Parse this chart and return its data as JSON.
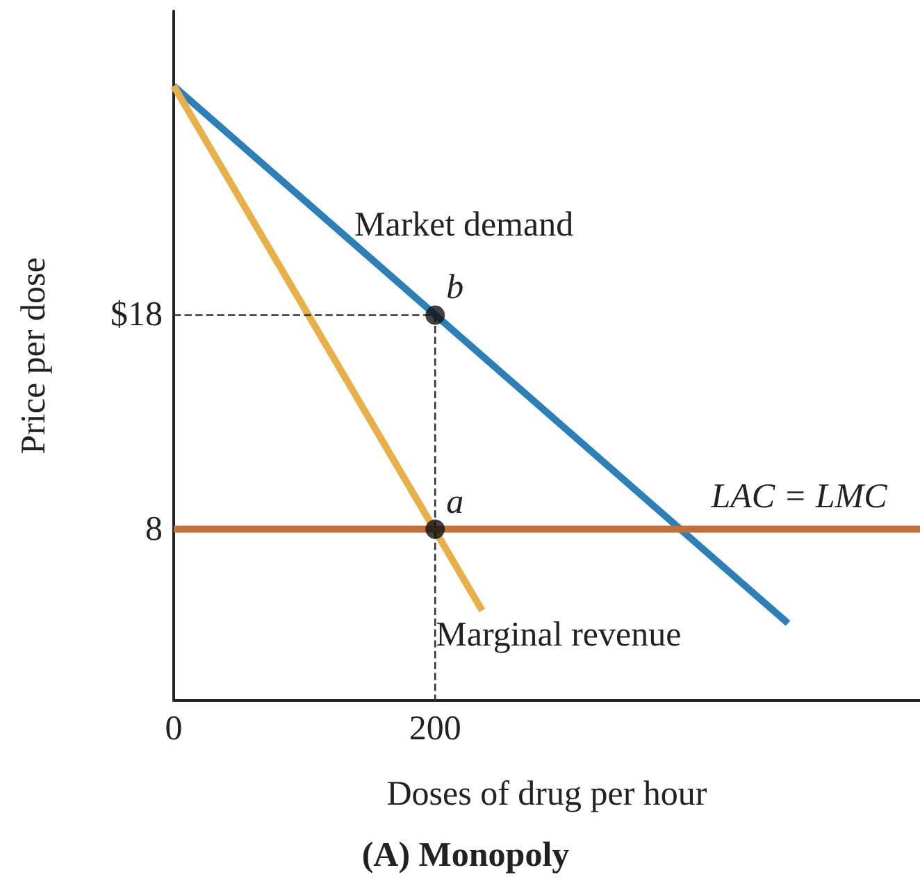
{
  "chart_data": {
    "type": "line",
    "title": "(A) Monopoly",
    "xlabel": "Doses of drug per hour",
    "ylabel": "Price per dose",
    "xlim": [
      0,
      571
    ],
    "ylim": [
      0,
      32.2
    ],
    "xticks": [
      0,
      200
    ],
    "yticks": [
      8,
      {
        "value": 18,
        "label": "$18"
      }
    ],
    "grid": false,
    "marker": "none",
    "series": [
      {
        "name": "Market demand",
        "color": "#2e7fb8",
        "x": [
          0,
          470
        ],
        "values": [
          28.7,
          3.6
        ]
      },
      {
        "name": "Marginal revenue",
        "color": "#e8b04a",
        "x": [
          0,
          236
        ],
        "values": [
          28.7,
          4.2
        ]
      },
      {
        "name": "LAC = LMC",
        "color": "#c0703a",
        "x": [
          0,
          571
        ],
        "values": [
          8,
          8
        ]
      },
      {
        "color": "#333333",
        "x": [
          0,
          200
        ],
        "values": [
          18,
          18
        ],
        "line_style": "dashed"
      },
      {
        "color": "#333333",
        "x": [
          200,
          200
        ],
        "values": [
          18,
          0
        ],
        "line_style": "dashed"
      },
      {
        "type": "scatter",
        "marker": "circle",
        "color": "#111111",
        "x": [
          200,
          200
        ],
        "values": [
          8,
          18
        ]
      }
    ],
    "annotations": [
      {
        "text": "a",
        "x": 200,
        "y": 8
      },
      {
        "text": "b",
        "x": 200,
        "y": 18
      }
    ]
  }
}
